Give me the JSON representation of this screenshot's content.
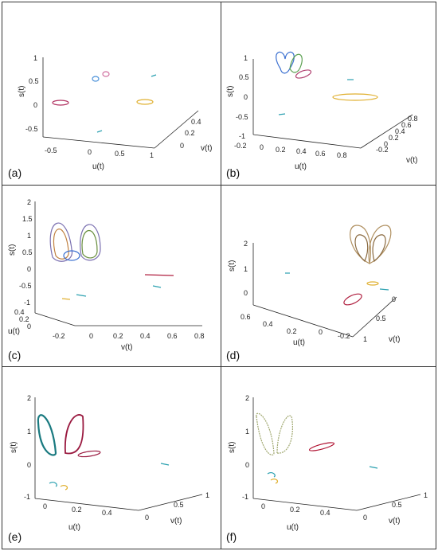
{
  "figure": {
    "panels": [
      {
        "label": "(a)",
        "s_label": "s(t)",
        "u_label": "u(t)",
        "v_label": "v(t)",
        "s_ticks": [
          "1",
          "0.5",
          "0",
          "-0.5"
        ],
        "u_ticks": [
          "-0.5",
          "0",
          "0.5",
          "1"
        ],
        "v_ticks": [
          "0",
          "0.2",
          "0.4"
        ]
      },
      {
        "label": "(b)",
        "s_label": "s(t)",
        "u_label": "u(t)",
        "v_label": "v(t)",
        "s_ticks": [
          "1",
          "0.5",
          "0",
          "-0.5",
          "-1"
        ],
        "u_ticks": [
          "-0.2",
          "0",
          "0.2",
          "0.4",
          "0.6",
          "0.8"
        ],
        "v_ticks": [
          "-0.2",
          "0",
          "0.2",
          "0.4",
          "0.6",
          "0.8"
        ]
      },
      {
        "label": "(c)",
        "s_label": "s(t)",
        "u_label": "u(t)",
        "v_label": "v(t)",
        "s_ticks": [
          "2",
          "1.5",
          "1",
          "0.5",
          "0",
          "-0.5",
          "-1"
        ],
        "u_ticks": [
          "0.4",
          "0.2",
          "0"
        ],
        "v_ticks": [
          "-0.2",
          "0",
          "0.2",
          "0.4",
          "0.6",
          "0.8"
        ]
      },
      {
        "label": "(d)",
        "s_label": "s(t)",
        "u_label": "u(t)",
        "v_label": "v(t)",
        "s_ticks": [
          "2",
          "1",
          "0"
        ],
        "u_ticks": [
          "0.6",
          "0.4",
          "0.2",
          "0",
          "-0.2"
        ],
        "v_ticks": [
          "1",
          "0.5",
          "0"
        ]
      },
      {
        "label": "(e)",
        "s_label": "s(t)",
        "u_label": "u(t)",
        "v_label": "v(t)",
        "s_ticks": [
          "2",
          "1",
          "0",
          "-1"
        ],
        "u_ticks": [
          "0",
          "0.2",
          "0.4"
        ],
        "v_ticks": [
          "0",
          "0.5",
          "1"
        ]
      },
      {
        "label": "(f)",
        "s_label": "s(t)",
        "u_label": "u(t)",
        "v_label": "v(t)",
        "s_ticks": [
          "2",
          "1",
          "0",
          "-1"
        ],
        "u_ticks": [
          "0",
          "0.2",
          "0.4"
        ],
        "v_ticks": [
          "0",
          "0.5",
          "1"
        ]
      }
    ]
  }
}
